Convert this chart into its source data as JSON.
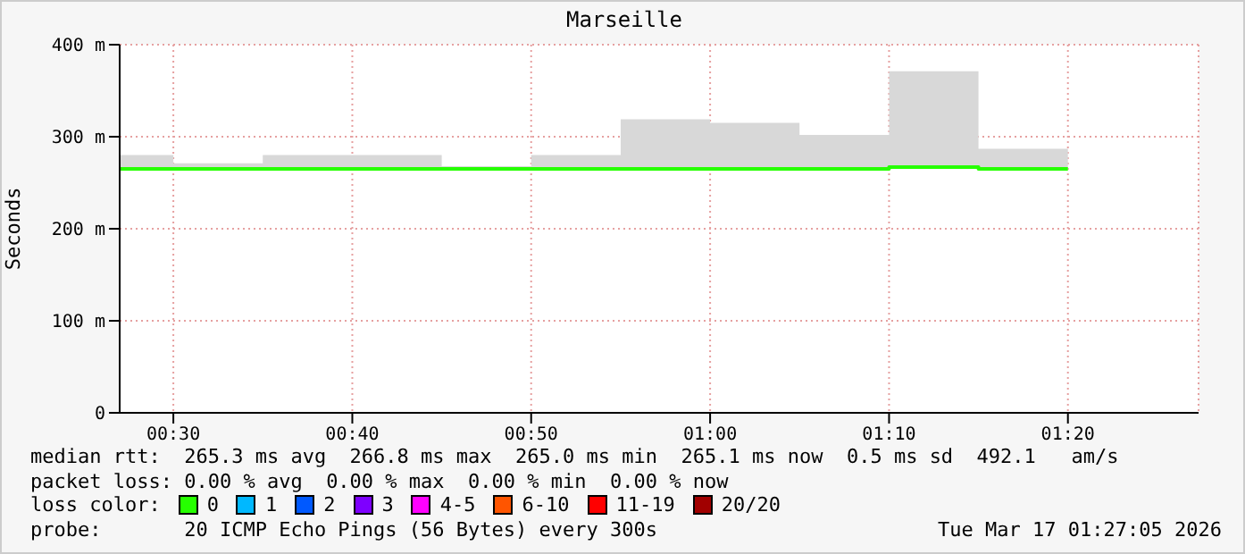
{
  "chart_data": {
    "type": "step",
    "title": "Marseille",
    "ylabel": "Seconds",
    "x": [
      0.45,
      0.5,
      0.5833,
      0.6667,
      0.75,
      0.8333,
      0.9167,
      1.0,
      1.0833,
      1.1667,
      1.25,
      1.3333
    ],
    "xlim": [
      0.45,
      1.455
    ],
    "xticks": [
      {
        "value": 0.5,
        "label": "00:30"
      },
      {
        "value": 0.6667,
        "label": "00:40"
      },
      {
        "value": 0.8333,
        "label": "00:50"
      },
      {
        "value": 1.0,
        "label": "01:00"
      },
      {
        "value": 1.1667,
        "label": "01:10"
      },
      {
        "value": 1.3333,
        "label": "01:20"
      }
    ],
    "ylim": [
      0,
      400
    ],
    "yticks": [
      0,
      {
        "value": 100,
        "label": "100 m"
      },
      {
        "value": 200,
        "label": "200 m"
      },
      {
        "value": 300,
        "label": "300 m"
      },
      {
        "value": 400,
        "label": "400 m"
      }
    ],
    "grid": true,
    "legend": "bottom",
    "legend_title": "loss color:",
    "series": [
      {
        "name": "0",
        "color": "#26ff00",
        "values": [
          265,
          265,
          265,
          265,
          265,
          265,
          265,
          265,
          265,
          267,
          265,
          265
        ],
        "lower": [
          264,
          264,
          264,
          264,
          264,
          264,
          264,
          264,
          264,
          266,
          264,
          264
        ],
        "upper": [
          280,
          271,
          280,
          280,
          268,
          280,
          319,
          315,
          302,
          371,
          287,
          287
        ]
      },
      {
        "name": "1",
        "color": "#00b8ff",
        "values": [
          null,
          null,
          null,
          null,
          null,
          null,
          null,
          null,
          null,
          null,
          null,
          null
        ]
      },
      {
        "name": "2",
        "color": "#0059ff",
        "values": [
          null,
          null,
          null,
          null,
          null,
          null,
          null,
          null,
          null,
          null,
          null,
          null
        ]
      },
      {
        "name": "3",
        "color": "#7e00ff",
        "values": [
          null,
          null,
          null,
          null,
          null,
          null,
          null,
          null,
          null,
          null,
          null,
          null
        ]
      },
      {
        "name": "4-5",
        "color": "#ff00ff",
        "values": [
          null,
          null,
          null,
          null,
          null,
          null,
          null,
          null,
          null,
          null,
          null,
          null
        ]
      },
      {
        "name": "6-10",
        "color": "#ff5500",
        "values": [
          null,
          null,
          null,
          null,
          null,
          null,
          null,
          null,
          null,
          null,
          null,
          null
        ]
      },
      {
        "name": "11-19",
        "color": "#ff0000",
        "values": [
          null,
          null,
          null,
          null,
          null,
          null,
          null,
          null,
          null,
          null,
          null,
          null
        ]
      },
      {
        "name": "20/20",
        "color": "#a10000",
        "values": [
          null,
          null,
          null,
          null,
          null,
          null,
          null,
          null,
          null,
          null,
          null,
          null
        ]
      }
    ],
    "annotations": [
      "median rtt:  265.3 ms avg  266.8 ms max  265.0 ms min  265.1 ms now  0.5 ms sd  492.1   am/s",
      "packet loss: 0.00 % avg  0.00 % max  0.00 % min  0.00 % now",
      "probe:       20 ICMP Echo Pings (56 Bytes) every 300s",
      "Tue Mar 17 01:27:05 2026"
    ]
  }
}
